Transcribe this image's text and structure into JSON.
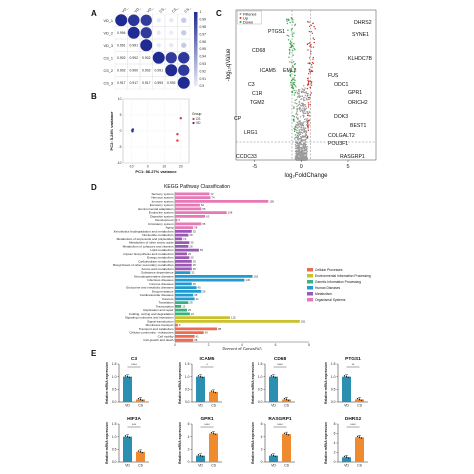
{
  "panels": {
    "a": {
      "letter": "A"
    },
    "b": {
      "letter": "B"
    },
    "c": {
      "letter": "C"
    },
    "d": {
      "letter": "D"
    },
    "e": {
      "letter": "E"
    }
  },
  "chart_data": [
    {
      "id": "A",
      "type": "heatmap",
      "kind": "correlation-bubble-matrix",
      "row_labels": [
        "VD_1",
        "VD_2",
        "VD_3",
        "CS_1",
        "CS_2",
        "CS_3"
      ],
      "col_labels": [
        "VD_1",
        "VD_2",
        "VD_3",
        "CS_1",
        "CS_2",
        "CS_3"
      ],
      "lower_values": [
        [
          null,
          null,
          null,
          null,
          null,
          null
        ],
        [
          0.994,
          null,
          null,
          null,
          null,
          null
        ],
        [
          0.991,
          0.991,
          null,
          null,
          null,
          null
        ],
        [
          0.902,
          0.902,
          0.902,
          null,
          null,
          null
        ],
        [
          0.902,
          0.9,
          0.902,
          0.991,
          null,
          null
        ],
        [
          0.917,
          0.917,
          0.917,
          0.993,
          0.992,
          null
        ]
      ],
      "lower_labels": [
        [
          "",
          "",
          "",
          "",
          "",
          ""
        ],
        [
          "0.994",
          "",
          "",
          "",
          "",
          ""
        ],
        [
          "0.991",
          "0.991",
          "",
          "",
          "",
          ""
        ],
        [
          "0.902",
          "0.902",
          "0.902",
          "",
          "",
          ""
        ],
        [
          "0.902",
          "0.900",
          "0.902",
          "0.991",
          "",
          ""
        ],
        [
          "0.917",
          "0.917",
          "0.917",
          "0.993",
          "0.992",
          ""
        ]
      ],
      "colorbar_ticks": [
        "1",
        "0.99",
        "0.98",
        "0.97",
        "0.96",
        "0.95",
        "0.94",
        "0.93",
        "0.92",
        "0.91",
        "0.9"
      ],
      "range": [
        0.9,
        1.0
      ],
      "colors": {
        "high": "#1f2a93",
        "low": "#e9ecf6"
      }
    },
    {
      "id": "B",
      "type": "scatter",
      "xlabel": "PC1: 86.27% variance",
      "ylabel": "PC2: 5.24% variance",
      "xlim": [
        -15,
        25
      ],
      "ylim": [
        -10,
        10
      ],
      "x_ticks": [
        "-10",
        "0",
        "10",
        "20"
      ],
      "y_ticks": [
        "-10",
        "-5",
        "0",
        "5",
        "10"
      ],
      "legend_title": "Group",
      "series": [
        {
          "name": "CS",
          "color": "#d93a3a",
          "points": [
            [
              20,
              4
            ],
            [
              18,
              -1
            ],
            [
              18,
              -3
            ]
          ]
        },
        {
          "name": "VD",
          "color": "#2b3d8f",
          "points": [
            [
              -9,
              0.5
            ],
            [
              -9.4,
              0.2
            ],
            [
              -9.2,
              -0.1
            ]
          ]
        }
      ]
    },
    {
      "id": "C",
      "type": "scatter",
      "kind": "volcano",
      "xlabel": "log₂FoldChange",
      "ylabel": "-log₁₀qValue",
      "x_ticks": [
        "-5",
        "0",
        "5"
      ],
      "xlim": [
        -7,
        8
      ],
      "legend": [
        "Filtered",
        "Up",
        "Down"
      ],
      "colors": {
        "filtered": "#9a9a9a",
        "up": "#d9342b",
        "down": "#3aa64a"
      },
      "gene_labels": [
        "DHRS2",
        "SYNE1",
        "PTGS1",
        "CD68",
        "KLHDC7B",
        "ICAM5",
        "EML2",
        "FUS",
        "C3",
        "ODC1",
        "C1R",
        "GPR1",
        "TGM2",
        "ORICH2",
        "DOK3",
        "BEST1",
        "CP",
        "LRG1",
        "COLGALT2",
        "POU3F1",
        "CCDC33",
        "RASGRP1"
      ]
    },
    {
      "id": "D",
      "type": "bar",
      "orientation": "horizontal",
      "title": "KEGG Pathway Classification",
      "xlabel": "Percent of Genes(%)",
      "categories": [
        "Sensory system",
        "Nervous system",
        "Immune system",
        "Excretory system",
        "Environmental adaptation",
        "Endocrine system",
        "Digestive system",
        "Development",
        "Circulatory system",
        "Aging",
        "Xenobiotics biodegradation and metabolism",
        "Nucleotide metabolism",
        "Metabolism of terpenoids and polyketides",
        "Metabolism of other amino acids",
        "Metabolism of cofactors and vitamins",
        "Lipid metabolism",
        "Glycan biosynthesis and metabolism",
        "Energy metabolism",
        "Carbohydrate metabolism",
        "Biosynthesis of other secondary metabolites",
        "Amino acid metabolism",
        "Substance dependence",
        "Neurodegenerative diseases",
        "Infectious diseases",
        "Immune diseases",
        "Endocrine and metabolic diseases",
        "Drug resistance",
        "Cardiovascular diseases",
        "Cancers",
        "Translation",
        "Transcription",
        "Replication and repair",
        "Folding, sorting and degradation",
        "Signaling molecules and interaction",
        "Signal transduction",
        "Membrane transport",
        "Transport and catabolism",
        "Cellular community - eukaryotes",
        "Cell motility",
        "Cell growth and death"
      ],
      "values": [
        72,
        74,
        195,
        52,
        55,
        108,
        63,
        5,
        55,
        38,
        35,
        28,
        15,
        30,
        28,
        50,
        25,
        30,
        35,
        35,
        35,
        32,
        162,
        145,
        35,
        45,
        55,
        38,
        41,
        28,
        13,
        25,
        31,
        115,
        261,
        6,
        88,
        60,
        41,
        38
      ],
      "groups": [
        {
          "name": "Organismal Systems",
          "color": "#e879b7",
          "count": 10
        },
        {
          "name": "Metabolism",
          "color": "#9b59b6",
          "count": 11
        },
        {
          "name": "Human Diseases",
          "color": "#1f9bd1",
          "count": 8
        },
        {
          "name": "Genetic Information Processing",
          "color": "#36b37e",
          "count": 4
        },
        {
          "name": "Environmental Information Processing",
          "color": "#c9c22b",
          "count": 2
        },
        {
          "name": "Cellular Processes",
          "color": "#ef6a53",
          "count": 5
        }
      ],
      "legend_order": [
        "Cellular Processes",
        "Environmental Information Processing",
        "Genetic Information Processing",
        "Human Diseases",
        "Metabolism",
        "Organismal Systems"
      ],
      "x_ticks": [
        "0",
        "2",
        "4",
        "6",
        "8"
      ]
    },
    {
      "id": "E",
      "type": "bar",
      "ylabel": "Relative mRNA expression",
      "groups": [
        "VD",
        "CS"
      ],
      "colors": {
        "VD": "#2a8fb0",
        "CS": "#ef8a2e"
      },
      "panels": [
        {
          "gene": "C3",
          "values": [
            1.0,
            0.1
          ],
          "ymax": 1.5,
          "ticks": [
            "0.0",
            "0.5",
            "1.0",
            "1.5"
          ],
          "sig": "****"
        },
        {
          "gene": "ICAM5",
          "values": [
            1.0,
            0.4
          ],
          "ymax": 1.5,
          "ticks": [
            "0.0",
            "0.5",
            "1.0",
            "1.5"
          ],
          "sig": "*"
        },
        {
          "gene": "CD68",
          "values": [
            1.0,
            0.1
          ],
          "ymax": 1.5,
          "ticks": [
            "0.0",
            "0.5",
            "1.0",
            "1.5"
          ],
          "sig": "****"
        },
        {
          "gene": "PTGS1",
          "values": [
            1.0,
            0.1
          ],
          "ymax": 1.5,
          "ticks": [
            "0.0",
            "0.5",
            "1.0",
            "1.5"
          ],
          "sig": "**"
        },
        {
          "gene": "HIF3A",
          "values": [
            1.0,
            0.4
          ],
          "ymax": 1.5,
          "ticks": [
            "0.0",
            "0.5",
            "1.0",
            "1.5"
          ],
          "sig": "***"
        },
        {
          "gene": "GPR1",
          "values": [
            1.0,
            4.5
          ],
          "ymax": 6,
          "ticks": [
            "0",
            "2",
            "4",
            "6"
          ],
          "sig": "****"
        },
        {
          "gene": "RASGRP1",
          "values": [
            1.0,
            4.4
          ],
          "ymax": 6,
          "ticks": [
            "0",
            "2",
            "4",
            "6"
          ],
          "sig": "****"
        },
        {
          "gene": "DHRS2",
          "values": [
            1.0,
            5.2
          ],
          "ymax": 8,
          "ticks": [
            "0",
            "2",
            "4",
            "6",
            "8"
          ],
          "sig": "****"
        }
      ]
    }
  ]
}
